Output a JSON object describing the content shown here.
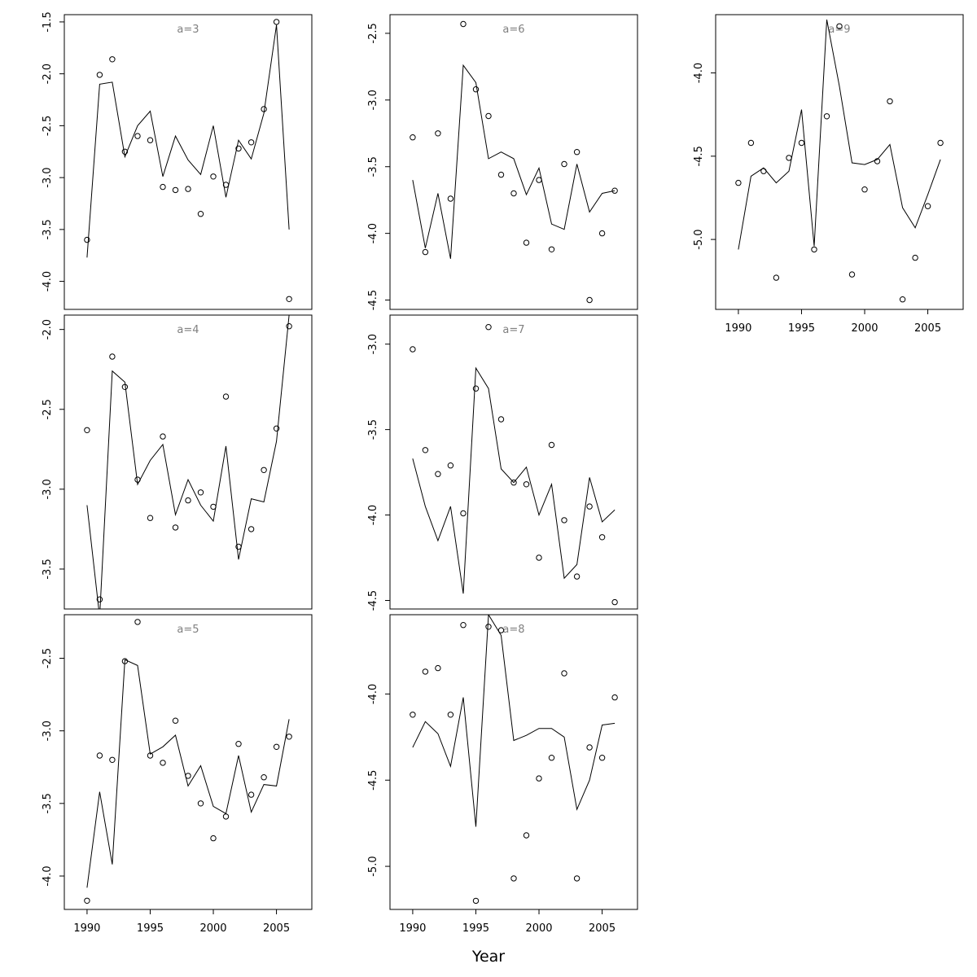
{
  "figure": {
    "xlabel": "Year"
  },
  "chart_data": [
    {
      "type": "scatter",
      "panel_label": "a=3",
      "x_ticks": [
        1990,
        1995,
        2000,
        2005
      ],
      "y_ticks": [
        -1.5,
        -2.0,
        -2.5,
        -3.0,
        -3.5,
        -4.0
      ],
      "xlim": [
        1988.2,
        2007.8
      ],
      "ylim": [
        -4.27,
        -1.43
      ],
      "x": [
        1990,
        1991,
        1992,
        1993,
        1994,
        1995,
        1996,
        1997,
        1998,
        1999,
        2000,
        2001,
        2002,
        2003,
        2004,
        2005,
        2006
      ],
      "points": [
        -3.6,
        -2.01,
        -1.86,
        -2.75,
        -2.6,
        -2.64,
        -3.09,
        -3.12,
        -3.11,
        -3.35,
        -2.99,
        -3.07,
        -2.72,
        -2.66,
        -2.34,
        -1.5,
        -4.17
      ],
      "line": [
        -3.77,
        -2.1,
        -2.08,
        -2.8,
        -2.5,
        -2.36,
        -2.99,
        -2.6,
        -2.83,
        -2.97,
        -2.5,
        -3.19,
        -2.64,
        -2.82,
        -2.38,
        -1.53,
        -3.5
      ]
    },
    {
      "type": "scatter",
      "panel_label": "a=4",
      "x_ticks": [
        1990,
        1995,
        2000,
        2005
      ],
      "y_ticks": [
        -2.0,
        -2.5,
        -3.0,
        -3.5
      ],
      "xlim": [
        1988.2,
        2007.8
      ],
      "ylim": [
        -3.75,
        -1.91
      ],
      "x": [
        1990,
        1991,
        1992,
        1993,
        1994,
        1995,
        1996,
        1997,
        1998,
        1999,
        2000,
        2001,
        2002,
        2003,
        2004,
        2005,
        2006
      ],
      "points": [
        -2.63,
        -3.69,
        -2.17,
        -2.36,
        -2.94,
        -3.18,
        -2.67,
        -3.24,
        -3.07,
        -3.02,
        -3.11,
        -2.42,
        -3.36,
        -3.25,
        -2.88,
        -2.62,
        -1.98
      ],
      "line": [
        -3.1,
        -3.8,
        -2.26,
        -2.33,
        -2.97,
        -2.82,
        -2.72,
        -3.16,
        -2.94,
        -3.1,
        -3.2,
        -2.73,
        -3.44,
        -3.06,
        -3.08,
        -2.7,
        -1.91
      ]
    },
    {
      "type": "scatter",
      "panel_label": "a=5",
      "x_ticks": [
        1990,
        1995,
        2000,
        2005
      ],
      "y_ticks": [
        -2.5,
        -3.0,
        -3.5,
        -4.0
      ],
      "xlim": [
        1988.2,
        2007.8
      ],
      "ylim": [
        -4.23,
        -2.2
      ],
      "x": [
        1990,
        1991,
        1992,
        1993,
        1994,
        1995,
        1996,
        1997,
        1998,
        1999,
        2000,
        2001,
        2002,
        2003,
        2004,
        2005,
        2006
      ],
      "points": [
        -4.17,
        -3.17,
        -3.2,
        -2.52,
        -2.25,
        -3.17,
        -3.22,
        -2.93,
        -3.31,
        -3.5,
        -3.74,
        -3.59,
        -3.09,
        -3.44,
        -3.32,
        -3.11,
        -3.04
      ],
      "line": [
        -4.08,
        -3.42,
        -3.92,
        -2.51,
        -2.55,
        -3.16,
        -3.11,
        -3.03,
        -3.38,
        -3.24,
        -3.52,
        -3.57,
        -3.17,
        -3.56,
        -3.37,
        -3.38,
        -2.92
      ]
    },
    {
      "type": "scatter",
      "panel_label": "a=6",
      "x_ticks": [
        1990,
        1995,
        2000,
        2005
      ],
      "y_ticks": [
        -2.5,
        -3.0,
        -3.5,
        -4.0,
        -4.5
      ],
      "xlim": [
        1988.2,
        2007.8
      ],
      "ylim": [
        -4.57,
        -2.36
      ],
      "x": [
        1990,
        1991,
        1992,
        1993,
        1994,
        1995,
        1996,
        1997,
        1998,
        1999,
        2000,
        2001,
        2002,
        2003,
        2004,
        2005,
        2006
      ],
      "points": [
        -3.28,
        -4.14,
        -3.25,
        -3.74,
        -2.43,
        -2.92,
        -3.12,
        -3.56,
        -3.7,
        -4.07,
        -3.6,
        -4.12,
        -3.48,
        -3.39,
        -4.5,
        -4.0,
        -3.68
      ],
      "line": [
        -3.6,
        -4.11,
        -3.7,
        -4.19,
        -2.74,
        -2.87,
        -3.44,
        -3.39,
        -3.44,
        -3.71,
        -3.51,
        -3.93,
        -3.97,
        -3.48,
        -3.84,
        -3.7,
        -3.68
      ]
    },
    {
      "type": "scatter",
      "panel_label": "a=7",
      "x_ticks": [
        1990,
        1995,
        2000,
        2005
      ],
      "y_ticks": [
        -3.0,
        -3.5,
        -4.0,
        -4.5
      ],
      "xlim": [
        1988.2,
        2007.8
      ],
      "ylim": [
        -4.55,
        -2.83
      ],
      "x": [
        1990,
        1991,
        1992,
        1993,
        1994,
        1995,
        1996,
        1997,
        1998,
        1999,
        2000,
        2001,
        2002,
        2003,
        2004,
        2005,
        2006
      ],
      "points": [
        -3.03,
        -3.62,
        -3.76,
        -3.71,
        -3.99,
        -3.26,
        -2.9,
        -3.44,
        -3.81,
        -3.82,
        -4.25,
        -3.59,
        -4.03,
        -4.36,
        -3.95,
        -4.13,
        -4.51
      ],
      "line": [
        -3.67,
        -3.95,
        -4.15,
        -3.95,
        -4.46,
        -3.14,
        -3.26,
        -3.73,
        -3.81,
        -3.72,
        -4.0,
        -3.82,
        -4.37,
        -4.29,
        -3.78,
        -4.04,
        -3.97
      ]
    },
    {
      "type": "scatter",
      "panel_label": "a=8",
      "x_ticks": [
        1990,
        1995,
        2000,
        2005
      ],
      "y_ticks": [
        -4.0,
        -4.5,
        -5.0
      ],
      "xlim": [
        1988.2,
        2007.8
      ],
      "ylim": [
        -5.25,
        -3.54
      ],
      "x": [
        1990,
        1991,
        1992,
        1993,
        1994,
        1995,
        1996,
        1997,
        1998,
        1999,
        2000,
        2001,
        2002,
        2003,
        2004,
        2005,
        2006
      ],
      "points": [
        -4.12,
        -3.87,
        -3.85,
        -4.12,
        -3.6,
        -5.2,
        -3.61,
        -3.63,
        -5.07,
        -4.82,
        -4.49,
        -4.37,
        -3.88,
        -5.07,
        -4.31,
        -4.37,
        -4.02
      ],
      "line": [
        -4.31,
        -4.16,
        -4.23,
        -4.42,
        -4.02,
        -4.77,
        -3.54,
        -3.66,
        -4.27,
        -4.24,
        -4.2,
        -4.2,
        -4.25,
        -4.67,
        -4.5,
        -4.18,
        -4.17
      ]
    },
    {
      "type": "scatter",
      "panel_label": "a=9",
      "x_ticks": [
        1990,
        1995,
        2000,
        2005
      ],
      "y_ticks": [
        -4.0,
        -4.5,
        -5.0
      ],
      "xlim": [
        1988.2,
        2007.8
      ],
      "ylim": [
        -5.42,
        -3.65
      ],
      "x": [
        1990,
        1991,
        1992,
        1993,
        1994,
        1995,
        1996,
        1997,
        1998,
        1999,
        2000,
        2001,
        2002,
        2003,
        2004,
        2005,
        2006
      ],
      "points": [
        -4.66,
        -4.42,
        -4.59,
        -5.23,
        -4.51,
        -4.42,
        -5.06,
        -4.26,
        -3.72,
        -5.21,
        -4.7,
        -4.53,
        -4.17,
        -5.36,
        -5.11,
        -4.8,
        -4.42
      ],
      "line": [
        -5.06,
        -4.62,
        -4.57,
        -4.66,
        -4.59,
        -4.22,
        -5.04,
        -3.68,
        -4.08,
        -4.54,
        -4.55,
        -4.52,
        -4.43,
        -4.81,
        -4.93,
        -4.73,
        -4.52
      ]
    }
  ]
}
